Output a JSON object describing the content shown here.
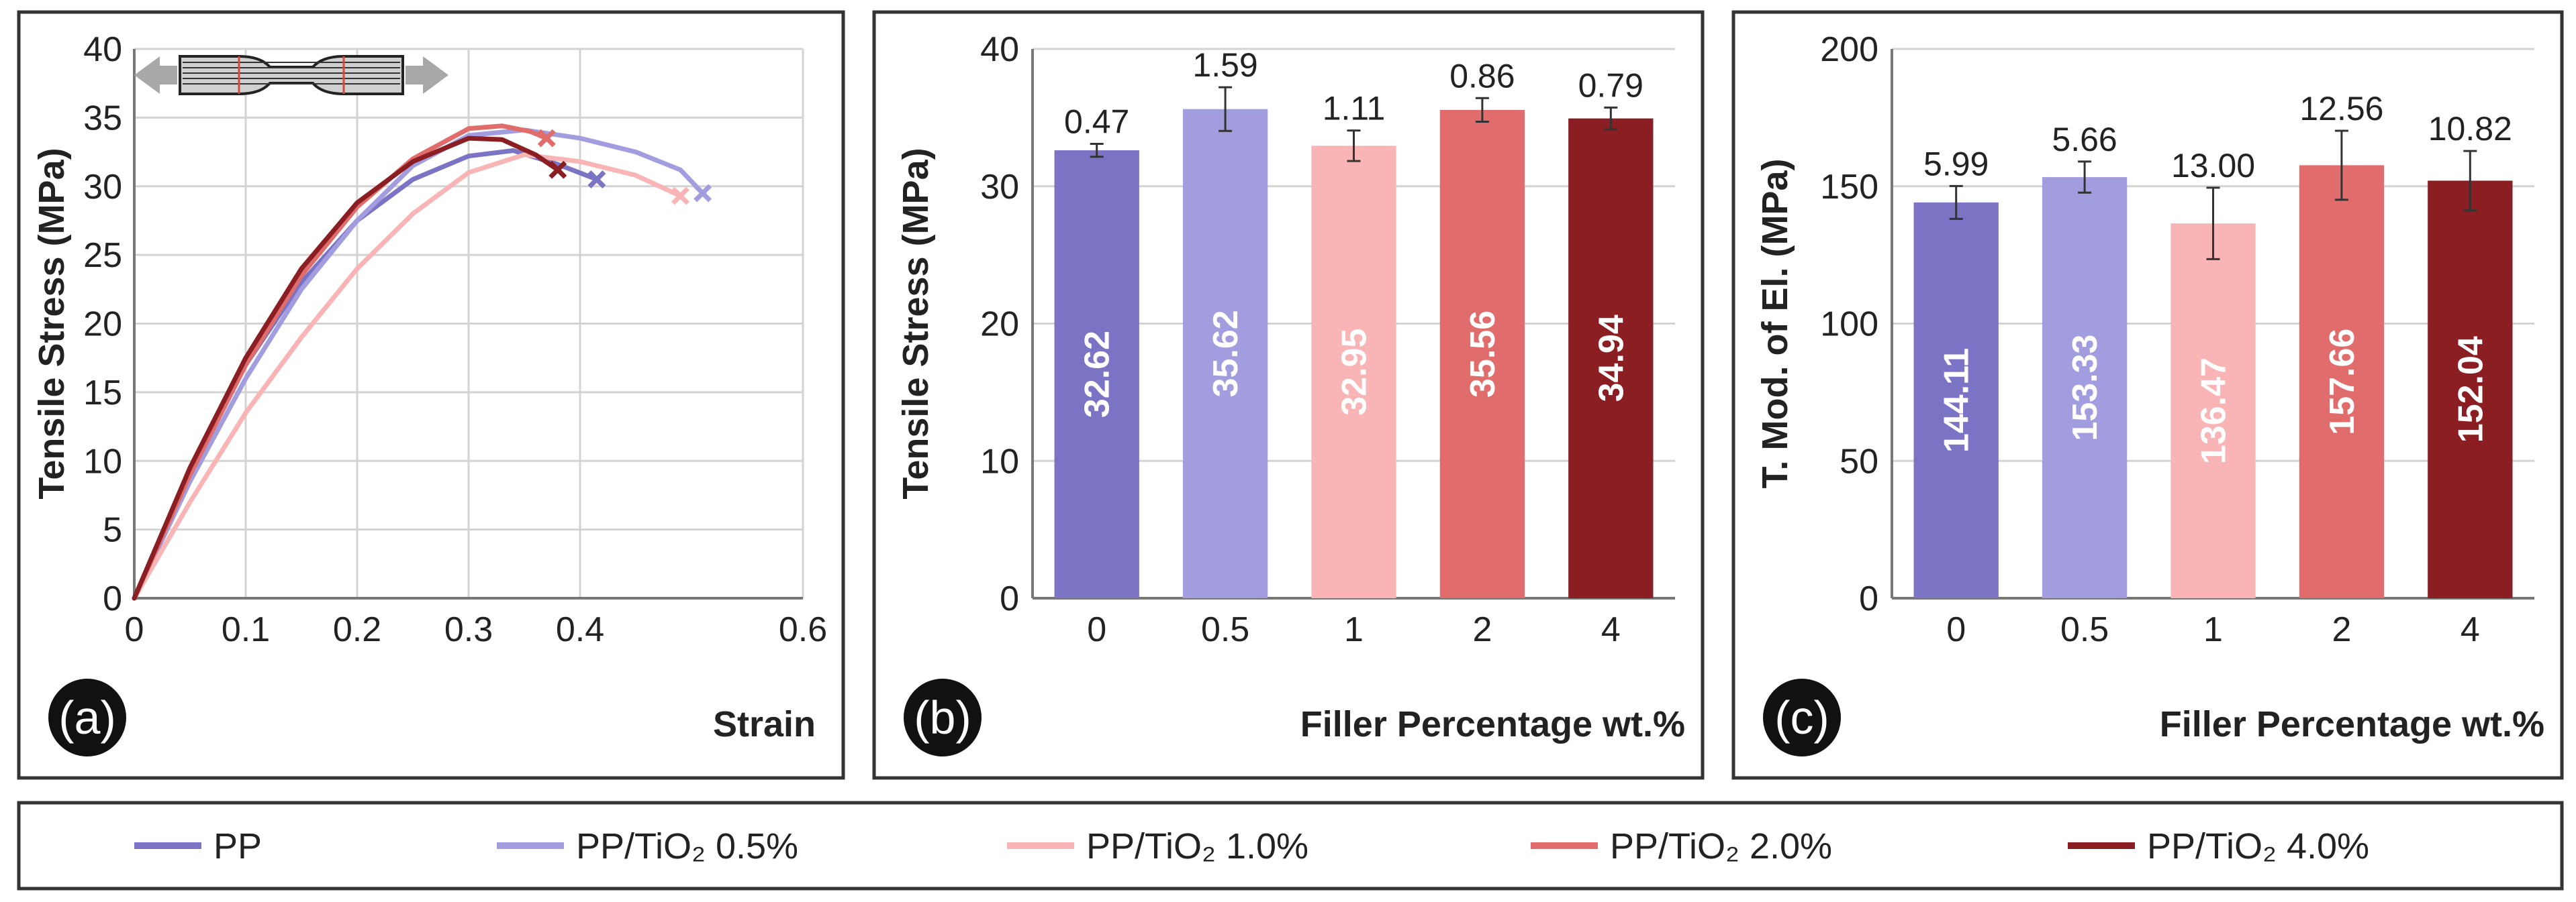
{
  "colors": {
    "PP": "#7b73c4",
    "PP05": "#a19ddf",
    "PP10": "#f9b5b5",
    "PP20": "#e06c6c",
    "PP40": "#8b1e22",
    "grid": "#d3d3d3",
    "axis": "#777777"
  },
  "legend": [
    {
      "label": "PP",
      "color_key": "PP"
    },
    {
      "label": "PP/TiO₂ 0.5%",
      "color_key": "PP05"
    },
    {
      "label": "PP/TiO₂ 1.0%",
      "color_key": "PP10"
    },
    {
      "label": "PP/TiO₂ 2.0%",
      "color_key": "PP20"
    },
    {
      "label": "PP/TiO₂ 4.0%",
      "color_key": "PP40"
    }
  ],
  "chart_data": [
    {
      "panel": "(a)",
      "type": "line",
      "xlabel": "Strain",
      "ylabel": "Tensile Stress (MPa)",
      "xlim": [
        0,
        0.6
      ],
      "ylim": [
        0,
        40
      ],
      "xticks": [
        "0",
        "0.1",
        "0.2",
        "0.3",
        "0.4",
        "0.6"
      ],
      "xtick_values": [
        0,
        0.1,
        0.2,
        0.3,
        0.4,
        0.6
      ],
      "yticks": [
        "0",
        "5",
        "10",
        "15",
        "20",
        "25",
        "30",
        "35",
        "40"
      ],
      "ytick_values": [
        0,
        5,
        10,
        15,
        20,
        25,
        30,
        35,
        40
      ],
      "grid": true,
      "inset_icon": "dogbone-specimen-icon",
      "series": [
        {
          "name": "PP",
          "color_key": "PP",
          "points": [
            [
              0,
              0
            ],
            [
              0.05,
              9
            ],
            [
              0.1,
              17
            ],
            [
              0.15,
              23
            ],
            [
              0.2,
              27.5
            ],
            [
              0.25,
              30.5
            ],
            [
              0.3,
              32.2
            ],
            [
              0.34,
              32.6
            ],
            [
              0.38,
              31.6
            ],
            [
              0.415,
              30.5
            ]
          ],
          "break": [
            0.415,
            30.5
          ]
        },
        {
          "name": "PP/TiO₂ 0.5%",
          "color_key": "PP05",
          "points": [
            [
              0,
              0
            ],
            [
              0.05,
              8.5
            ],
            [
              0.1,
              16
            ],
            [
              0.15,
              22.5
            ],
            [
              0.2,
              27.5
            ],
            [
              0.25,
              31.5
            ],
            [
              0.3,
              33.7
            ],
            [
              0.35,
              34.1
            ],
            [
              0.4,
              33.5
            ],
            [
              0.45,
              32.5
            ],
            [
              0.49,
              31.2
            ],
            [
              0.51,
              29.5
            ]
          ],
          "break": [
            0.51,
            29.5
          ]
        },
        {
          "name": "PP/TiO₂ 1.0%",
          "color_key": "PP10",
          "points": [
            [
              0,
              0
            ],
            [
              0.05,
              7
            ],
            [
              0.1,
              13.5
            ],
            [
              0.15,
              19
            ],
            [
              0.2,
              24
            ],
            [
              0.25,
              28
            ],
            [
              0.3,
              31
            ],
            [
              0.35,
              32.3
            ],
            [
              0.4,
              31.8
            ],
            [
              0.45,
              30.8
            ],
            [
              0.49,
              29.3
            ]
          ],
          "break": [
            0.49,
            29.3
          ]
        },
        {
          "name": "PP/TiO₂ 2.0%",
          "color_key": "PP20",
          "points": [
            [
              0,
              0
            ],
            [
              0.05,
              9
            ],
            [
              0.1,
              17
            ],
            [
              0.15,
              23.5
            ],
            [
              0.2,
              28.5
            ],
            [
              0.25,
              32
            ],
            [
              0.3,
              34.2
            ],
            [
              0.33,
              34.4
            ],
            [
              0.355,
              34
            ],
            [
              0.37,
              33.5
            ]
          ],
          "break": [
            0.37,
            33.5
          ]
        },
        {
          "name": "PP/TiO₂ 4.0%",
          "color_key": "PP40",
          "points": [
            [
              0,
              0
            ],
            [
              0.05,
              9.5
            ],
            [
              0.1,
              17.5
            ],
            [
              0.15,
              24
            ],
            [
              0.2,
              28.8
            ],
            [
              0.25,
              31.8
            ],
            [
              0.3,
              33.5
            ],
            [
              0.33,
              33.4
            ],
            [
              0.36,
              32.3
            ],
            [
              0.38,
              31.2
            ]
          ],
          "break": [
            0.38,
            31.2
          ]
        }
      ]
    },
    {
      "panel": "(b)",
      "type": "bar",
      "xlabel": "Filler Percentage wt.%",
      "ylabel": "Tensile Stress (MPa)",
      "categories": [
        "0",
        "0.5",
        "1",
        "2",
        "4"
      ],
      "values": [
        32.62,
        35.62,
        32.95,
        35.56,
        34.94
      ],
      "value_labels": [
        "32.62",
        "35.62",
        "32.95",
        "35.56",
        "34.94"
      ],
      "errors": [
        0.47,
        1.59,
        1.11,
        0.86,
        0.79
      ],
      "error_labels": [
        "0.47",
        "1.59",
        "1.11",
        "0.86",
        "0.79"
      ],
      "color_keys": [
        "PP",
        "PP05",
        "PP10",
        "PP20",
        "PP40"
      ],
      "ylim": [
        0,
        40
      ],
      "yticks": [
        "0",
        "10",
        "20",
        "30",
        "40"
      ],
      "ytick_values": [
        0,
        10,
        20,
        30,
        40
      ],
      "grid": true
    },
    {
      "panel": "(c)",
      "type": "bar",
      "xlabel": "Filler Percentage wt.%",
      "ylabel": "T. Mod. of El. (MPa)",
      "categories": [
        "0",
        "0.5",
        "1",
        "2",
        "4"
      ],
      "values": [
        144.11,
        153.33,
        136.47,
        157.66,
        152.04
      ],
      "value_labels": [
        "144.11",
        "153.33",
        "136.47",
        "157.66",
        "152.04"
      ],
      "errors": [
        5.99,
        5.66,
        13.0,
        12.56,
        10.82
      ],
      "error_labels": [
        "5.99",
        "5.66",
        "13.00",
        "12.56",
        "10.82"
      ],
      "color_keys": [
        "PP",
        "PP05",
        "PP10",
        "PP20",
        "PP40"
      ],
      "ylim": [
        0,
        200
      ],
      "yticks": [
        "0",
        "50",
        "100",
        "150",
        "200"
      ],
      "ytick_values": [
        0,
        50,
        100,
        150,
        200
      ],
      "grid": true
    }
  ]
}
